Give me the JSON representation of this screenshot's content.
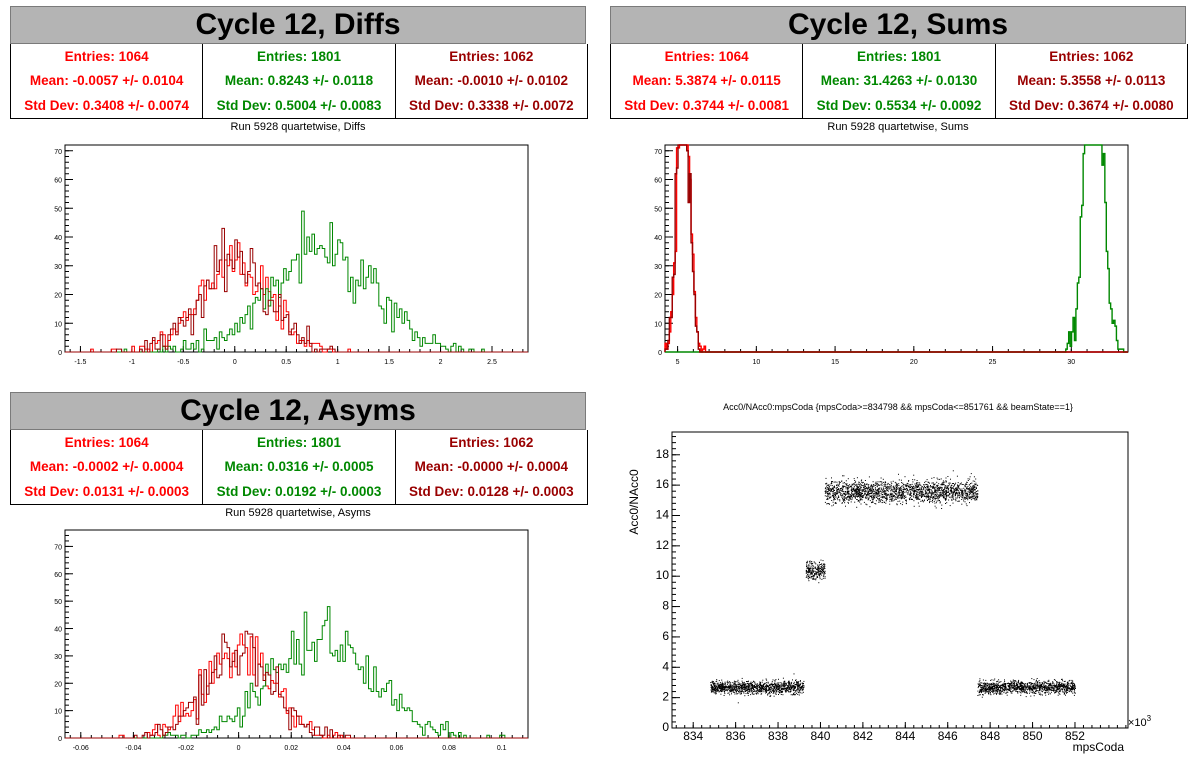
{
  "colors": {
    "red": "#ff0000",
    "green": "#008800",
    "darkred": "#990000"
  },
  "panels": {
    "diffs": {
      "title": "Cycle 12, Diffs",
      "stats": [
        {
          "entries": "Entries: 1064",
          "mean": "Mean: -0.0057 +/- 0.0104",
          "std": "Std Dev: 0.3408 +/- 0.0074",
          "color": "#ff0000"
        },
        {
          "entries": "Entries: 1801",
          "mean": "Mean: 0.8243 +/- 0.0118",
          "std": "Std Dev: 0.5004 +/- 0.0083",
          "color": "#008800"
        },
        {
          "entries": "Entries: 1062",
          "mean": "Mean: -0.0010 +/- 0.0102",
          "std": "Std Dev: 0.3338 +/- 0.0072",
          "color": "#990000"
        }
      ],
      "subtitle": "Run 5928 quartetwise, Diffs"
    },
    "sums": {
      "title": "Cycle 12, Sums",
      "stats": [
        {
          "entries": "Entries: 1064",
          "mean": "Mean: 5.3874 +/- 0.0115",
          "std": "Std Dev: 0.3744 +/- 0.0081",
          "color": "#ff0000"
        },
        {
          "entries": "Entries: 1801",
          "mean": "Mean: 31.4263 +/- 0.0130",
          "std": "Std Dev: 0.5534 +/- 0.0092",
          "color": "#008800"
        },
        {
          "entries": "Entries: 1062",
          "mean": "Mean: 5.3558 +/- 0.0113",
          "std": "Std Dev: 0.3674 +/- 0.0080",
          "color": "#990000"
        }
      ],
      "subtitle": "Run 5928 quartetwise, Sums"
    },
    "asyms": {
      "title": "Cycle 12, Asyms",
      "stats": [
        {
          "entries": "Entries: 1064",
          "mean": "Mean: -0.0002 +/- 0.0004",
          "std": "Std Dev: 0.0131 +/- 0.0003",
          "color": "#ff0000"
        },
        {
          "entries": "Entries: 1801",
          "mean": "Mean: 0.0316 +/- 0.0005",
          "std": "Std Dev: 0.0192 +/- 0.0003",
          "color": "#008800"
        },
        {
          "entries": "Entries: 1062",
          "mean": "Mean: -0.0000 +/- 0.0004",
          "std": "Std Dev: 0.0128 +/- 0.0003",
          "color": "#990000"
        }
      ],
      "subtitle": "Run 5928 quartetwise, Asyms"
    },
    "scatter": {
      "title": "Acc0/NAcc0:mpsCoda {mpsCoda>=834798 && mpsCoda<=851761 && beamState==1}",
      "ylabel": "Acc0/NAcc0",
      "xlabel": "mpsCoda",
      "xexp": "×10",
      "xexp_power": "3"
    }
  },
  "chart_data": [
    {
      "type": "histogram",
      "name": "diffs",
      "xlim": [
        -1.65,
        2.85
      ],
      "ylim": [
        0,
        72
      ],
      "xticks": [
        "-1.5",
        "-1",
        "-0.5",
        "0",
        "0.5",
        "1",
        "1.5",
        "2",
        "2.5"
      ],
      "yticks": [
        "0",
        "10",
        "20",
        "30",
        "40",
        "50",
        "60",
        "70"
      ],
      "series": [
        {
          "entries": 1064,
          "mean": -0.0057,
          "std": 0.3408,
          "color": "#ff0000"
        },
        {
          "entries": 1801,
          "mean": 0.8243,
          "std": 0.5004,
          "color": "#008800"
        },
        {
          "entries": 1062,
          "mean": -0.001,
          "std": 0.3338,
          "color": "#990000"
        }
      ]
    },
    {
      "type": "histogram",
      "name": "sums",
      "xlim": [
        4.2,
        33.6
      ],
      "ylim": [
        0,
        72
      ],
      "xticks": [
        "5",
        "10",
        "15",
        "20",
        "25",
        "30"
      ],
      "yticks": [
        "0",
        "10",
        "20",
        "30",
        "40",
        "50",
        "60",
        "70"
      ],
      "series": [
        {
          "entries": 1064,
          "mean": 5.3874,
          "std": 0.3744,
          "color": "#ff0000"
        },
        {
          "entries": 1801,
          "mean": 31.4263,
          "std": 0.5534,
          "color": "#008800"
        },
        {
          "entries": 1062,
          "mean": 5.3558,
          "std": 0.3674,
          "color": "#990000"
        }
      ]
    },
    {
      "type": "histogram",
      "name": "asyms",
      "xlim": [
        -0.066,
        0.11
      ],
      "ylim": [
        0,
        76
      ],
      "xticks": [
        "-0.06",
        "-0.04",
        "-0.02",
        "0",
        "0.02",
        "0.04",
        "0.06",
        "0.08",
        "0.1"
      ],
      "yticks": [
        "0",
        "10",
        "20",
        "30",
        "40",
        "50",
        "60",
        "70"
      ],
      "series": [
        {
          "entries": 1064,
          "mean": -0.0002,
          "std": 0.0131,
          "color": "#ff0000"
        },
        {
          "entries": 1801,
          "mean": 0.0316,
          "std": 0.0192,
          "color": "#008800"
        },
        {
          "entries": 1062,
          "mean": -0.0,
          "std": 0.0128,
          "color": "#990000"
        }
      ]
    },
    {
      "type": "scatter",
      "name": "scatter",
      "xlim": [
        833,
        854.5
      ],
      "ylim": [
        0,
        19.5
      ],
      "xticks": [
        "834",
        "836",
        "838",
        "840",
        "842",
        "844",
        "846",
        "848",
        "850",
        "852"
      ],
      "yticks": [
        "0",
        "2",
        "4",
        "6",
        "8",
        "10",
        "12",
        "14",
        "16",
        "18"
      ],
      "clusters": [
        {
          "x": [
            834.8,
            839.2
          ],
          "y": 2.7,
          "spread": 0.35
        },
        {
          "x": [
            839.3,
            840.2
          ],
          "y": 10.4,
          "spread": 0.5
        },
        {
          "x": [
            840.2,
            847.4
          ],
          "y": 15.6,
          "spread": 0.6
        },
        {
          "x": [
            847.4,
            852.0
          ],
          "y": 2.7,
          "spread": 0.35
        }
      ]
    }
  ]
}
